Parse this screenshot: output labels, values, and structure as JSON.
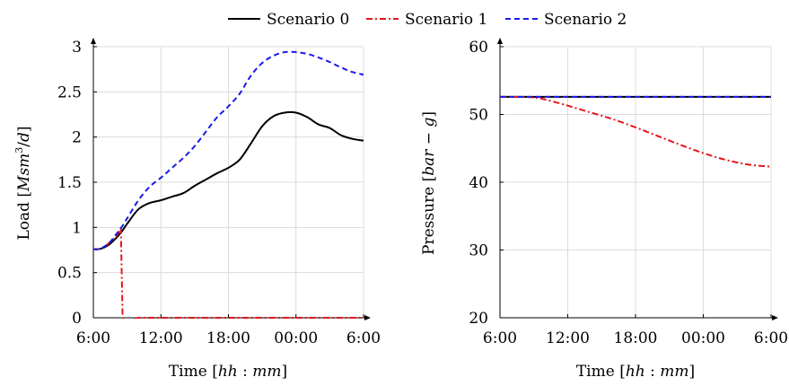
{
  "legend": [
    {
      "name": "Scenario 0",
      "color": "#000000",
      "dash": "solid"
    },
    {
      "name": "Scenario 1",
      "color": "#e8141c",
      "dash": "dashdot"
    },
    {
      "name": "Scenario 2",
      "color": "#1a1aeb",
      "dash": "dashed"
    }
  ],
  "chart_data": [
    {
      "type": "line",
      "xlabel": "Time [hh : mm]",
      "ylabel": "Load [Msm³/d]",
      "xlim": [
        0,
        24
      ],
      "ylim": [
        0,
        3
      ],
      "xticks": [
        0,
        6,
        12,
        18,
        24
      ],
      "xtick_labels": [
        "6:00",
        "12:00",
        "18:00",
        "00:00",
        "6:00"
      ],
      "yticks": [
        0,
        0.5,
        1,
        1.5,
        2,
        2.5,
        3
      ],
      "ytick_labels": [
        "0",
        "0.5",
        "1",
        "1.5",
        "2",
        "2.5",
        "3"
      ],
      "grid": true,
      "series": [
        {
          "name": "Scenario 0",
          "x": [
            0,
            0.5,
            1,
            1.5,
            2,
            2.5,
            3,
            4,
            5,
            6,
            7,
            8,
            9,
            10,
            11,
            12,
            13,
            14,
            15,
            16,
            17,
            18,
            19,
            20,
            21,
            22,
            23,
            24
          ],
          "y": [
            0.76,
            0.76,
            0.78,
            0.82,
            0.88,
            0.95,
            1.04,
            1.2,
            1.27,
            1.3,
            1.34,
            1.38,
            1.46,
            1.53,
            1.6,
            1.66,
            1.75,
            1.93,
            2.12,
            2.23,
            2.27,
            2.27,
            2.22,
            2.14,
            2.1,
            2.02,
            1.98,
            1.96
          ]
        },
        {
          "name": "Scenario 1",
          "x": [
            0,
            0.5,
            1,
            1.5,
            2,
            2.4,
            2.45,
            2.6,
            4,
            6,
            8,
            10,
            12,
            14,
            16,
            18,
            20,
            22,
            24
          ],
          "y": [
            0.76,
            0.76,
            0.79,
            0.84,
            0.9,
            0.97,
            0.93,
            0,
            0,
            0,
            0,
            0,
            0,
            0,
            0,
            0,
            0,
            0,
            0
          ]
        },
        {
          "name": "Scenario 2",
          "x": [
            0,
            0.5,
            1,
            1.5,
            2,
            2.5,
            3,
            4,
            5,
            6,
            7,
            8,
            9,
            10,
            11,
            12,
            13,
            14,
            15,
            16,
            17,
            18,
            19,
            20,
            21,
            22,
            23,
            24
          ],
          "y": [
            0.76,
            0.76,
            0.79,
            0.84,
            0.92,
            1.0,
            1.1,
            1.3,
            1.45,
            1.55,
            1.66,
            1.77,
            1.9,
            2.06,
            2.22,
            2.34,
            2.48,
            2.68,
            2.82,
            2.9,
            2.94,
            2.94,
            2.92,
            2.88,
            2.83,
            2.77,
            2.72,
            2.69
          ]
        }
      ]
    },
    {
      "type": "line",
      "xlabel": "Time [hh : mm]",
      "ylabel": "Pressure [bar − g]",
      "xlim": [
        0,
        24
      ],
      "ylim": [
        20,
        60
      ],
      "xticks": [
        0,
        6,
        12,
        18,
        24
      ],
      "xtick_labels": [
        "6:00",
        "12:00",
        "18:00",
        "00:00",
        "6:00"
      ],
      "yticks": [
        20,
        30,
        40,
        50,
        60
      ],
      "ytick_labels": [
        "20",
        "30",
        "40",
        "50",
        "60"
      ],
      "grid": true,
      "series": [
        {
          "name": "Scenario 0",
          "x": [
            0,
            24
          ],
          "y": [
            52.6,
            52.6
          ]
        },
        {
          "name": "Scenario 1",
          "x": [
            0,
            2,
            3,
            4,
            6,
            8,
            10,
            12,
            14,
            16,
            18,
            20,
            22,
            24
          ],
          "y": [
            52.6,
            52.6,
            52.5,
            52.2,
            51.3,
            50.3,
            49.3,
            48.1,
            46.8,
            45.5,
            44.3,
            43.3,
            42.6,
            42.3
          ]
        },
        {
          "name": "Scenario 2",
          "x": [
            0,
            24
          ],
          "y": [
            52.6,
            52.6
          ]
        }
      ]
    }
  ]
}
